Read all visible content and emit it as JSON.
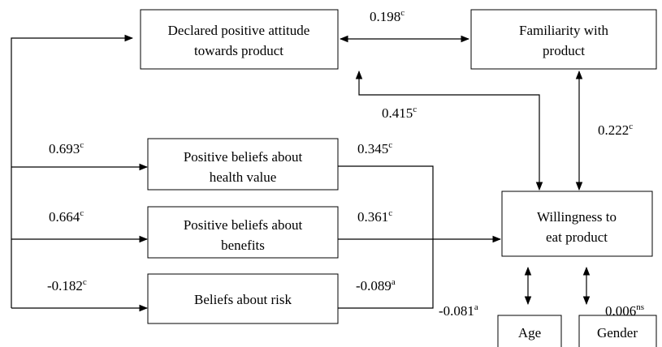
{
  "nodes": [
    {
      "lines": [
        "Declared positive attitude",
        "towards product"
      ]
    },
    {
      "lines": [
        "Familiarity with",
        "product"
      ]
    },
    {
      "lines": [
        "Positive beliefs about",
        "health value"
      ]
    },
    {
      "lines": [
        "Positive beliefs about",
        "benefits"
      ]
    },
    {
      "lines": [
        "Beliefs about risk"
      ]
    },
    {
      "lines": [
        "Willingness to",
        "eat product"
      ]
    },
    {
      "lines": [
        "Age"
      ]
    },
    {
      "lines": [
        "Gender"
      ]
    }
  ],
  "edges": [
    {
      "label": "0.198",
      "sup": "c"
    },
    {
      "label": "0.415",
      "sup": "c"
    },
    {
      "label": "0.222",
      "sup": "c"
    },
    {
      "label": "0.693",
      "sup": "c"
    },
    {
      "label": "0.664",
      "sup": "c"
    },
    {
      "label": "-0.182",
      "sup": "c"
    },
    {
      "label": "0.345",
      "sup": "c"
    },
    {
      "label": "0.361",
      "sup": "c"
    },
    {
      "label": "-0.089",
      "sup": "a"
    },
    {
      "label": "-0.081",
      "sup": "a"
    },
    {
      "label": "0.006",
      "sup": "ns"
    }
  ]
}
